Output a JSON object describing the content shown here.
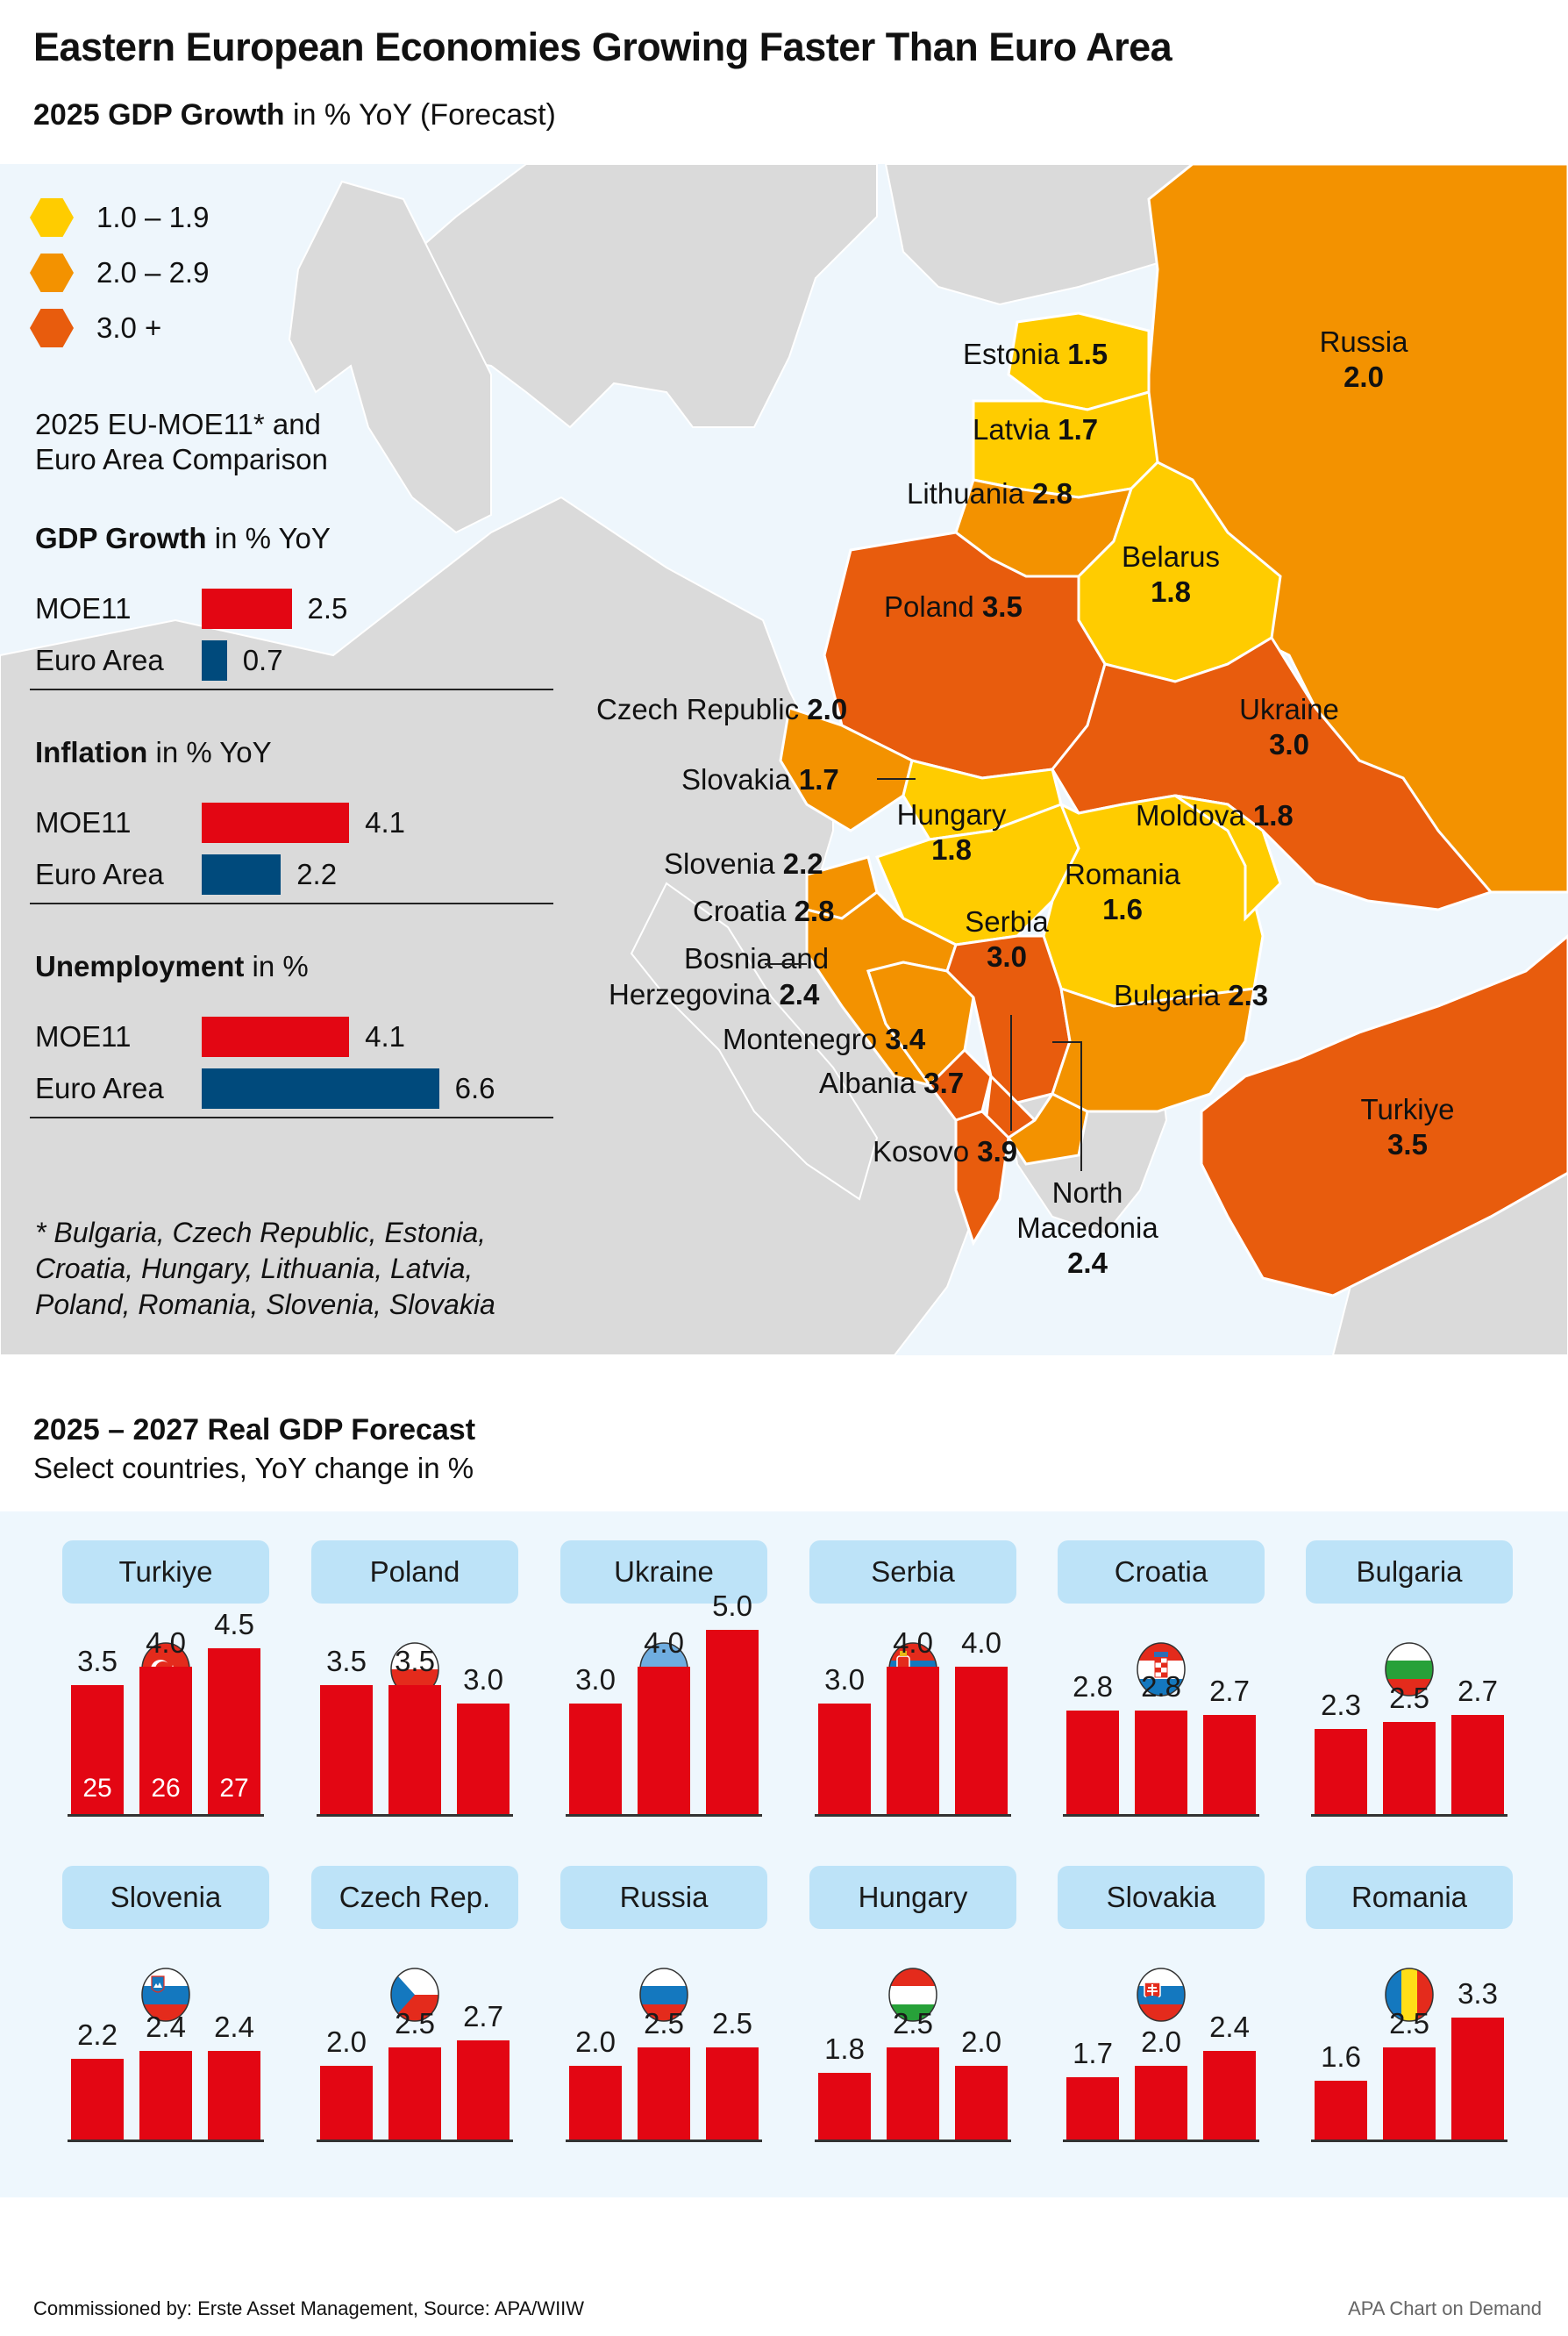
{
  "header": {
    "title": "Eastern European Economies Growing Faster Than Euro Area",
    "subtitle_bold": "2025 GDP Growth",
    "subtitle_rest": " in % YoY (Forecast)"
  },
  "colors": {
    "band_low": "#ffcc00",
    "band_mid": "#f39200",
    "band_high": "#e85c0d",
    "moe11": "#e30613",
    "euro_area": "#004a7c",
    "tab_bg": "#bde3f8",
    "land_other": "#dadada",
    "sea": "#eef6fc"
  },
  "legend": [
    {
      "label": "1.0 – 1.9",
      "band": "low"
    },
    {
      "label": "2.0 – 2.9",
      "band": "mid"
    },
    {
      "label": "3.0 +",
      "band": "high"
    }
  ],
  "comparison": {
    "title_line1": "2025 EU-MOE11* and",
    "title_line2": "Euro Area Comparison",
    "sections": [
      {
        "head_bold": "GDP Growth",
        "head_rest": " in % YoY",
        "rows": [
          {
            "label": "MOE11",
            "value": 2.5,
            "display": "2.5",
            "series": "moe11"
          },
          {
            "label": "Euro Area",
            "value": 0.7,
            "display": "0.7",
            "series": "euro_area"
          }
        ]
      },
      {
        "head_bold": "Inflation",
        "head_rest": " in % YoY",
        "rows": [
          {
            "label": "MOE11",
            "value": 4.1,
            "display": "4.1",
            "series": "moe11"
          },
          {
            "label": "Euro Area",
            "value": 2.2,
            "display": "2.2",
            "series": "euro_area"
          }
        ]
      },
      {
        "head_bold": "Unemployment",
        "head_rest": " in %",
        "rows": [
          {
            "label": "MOE11",
            "value": 4.1,
            "display": "4.1",
            "series": "moe11"
          },
          {
            "label": "Euro Area",
            "value": 6.6,
            "display": "6.6",
            "series": "euro_area"
          }
        ]
      }
    ],
    "footnote_lines": [
      "* Bulgaria, Czech Republic, Estonia,",
      "Croatia, Hungary, Lithuania, Latvia,",
      "Poland, Romania, Slovenia, Slovakia"
    ]
  },
  "map_labels": {
    "estonia": {
      "name": "Estonia",
      "value": "1.5"
    },
    "latvia": {
      "name": "Latvia",
      "value": "1.7"
    },
    "lithuania": {
      "name": "Lithuania",
      "value": "2.8"
    },
    "russia": {
      "name": "Russia",
      "value": "2.0"
    },
    "belarus": {
      "name": "Belarus",
      "value": "1.8"
    },
    "poland": {
      "name": "Poland",
      "value": "3.5"
    },
    "czech": {
      "name": "Czech Republic",
      "value": "2.0"
    },
    "ukraine": {
      "name": "Ukraine",
      "value": "3.0"
    },
    "slovakia": {
      "name": "Slovakia",
      "value": "1.7"
    },
    "hungary": {
      "name": "Hungary",
      "value": "1.8"
    },
    "moldova": {
      "name": "Moldova",
      "value": "1.8"
    },
    "slovenia": {
      "name": "Slovenia",
      "value": "2.2"
    },
    "romania": {
      "name": "Romania",
      "value": "1.6"
    },
    "croatia": {
      "name": "Croatia",
      "value": "2.8"
    },
    "serbia": {
      "name": "Serbia",
      "value": "3.0"
    },
    "bosnia": {
      "name_line1": "Bosnia and",
      "name_line2": "Herzegovina",
      "value": "2.4"
    },
    "bulgaria": {
      "name": "Bulgaria",
      "value": "2.3"
    },
    "montenegro": {
      "name": "Montenegro",
      "value": "3.4"
    },
    "albania": {
      "name": "Albania",
      "value": "3.7"
    },
    "kosovo": {
      "name": "Kosovo",
      "value": "3.9"
    },
    "turkiye": {
      "name": "Turkiye",
      "value": "3.5"
    },
    "north_macedonia": {
      "name_line1": "North",
      "name_line2": "Macedonia",
      "value": "2.4"
    }
  },
  "forecast": {
    "title": "2025 – 2027 Real GDP Forecast",
    "subtitle": "Select countries, YoY change in %"
  },
  "footer": {
    "left": "Commissioned by: Erste Asset Management, Source: APA/WIIW",
    "right": "APA Chart on Demand"
  },
  "chart_data": [
    {
      "type": "choropleth-map",
      "title": "2025 GDP Growth in % YoY (Forecast)",
      "bins": [
        {
          "label": "1.0 – 1.9",
          "min": 1.0,
          "max": 1.9
        },
        {
          "label": "2.0 – 2.9",
          "min": 2.0,
          "max": 2.9
        },
        {
          "label": "3.0 +",
          "min": 3.0
        }
      ],
      "regions": [
        {
          "name": "Estonia",
          "value": 1.5
        },
        {
          "name": "Latvia",
          "value": 1.7
        },
        {
          "name": "Lithuania",
          "value": 2.8
        },
        {
          "name": "Russia",
          "value": 2.0
        },
        {
          "name": "Belarus",
          "value": 1.8
        },
        {
          "name": "Poland",
          "value": 3.5
        },
        {
          "name": "Czech Republic",
          "value": 2.0
        },
        {
          "name": "Ukraine",
          "value": 3.0
        },
        {
          "name": "Slovakia",
          "value": 1.7
        },
        {
          "name": "Hungary",
          "value": 1.8
        },
        {
          "name": "Moldova",
          "value": 1.8
        },
        {
          "name": "Slovenia",
          "value": 2.2
        },
        {
          "name": "Romania",
          "value": 1.6
        },
        {
          "name": "Croatia",
          "value": 2.8
        },
        {
          "name": "Serbia",
          "value": 3.0
        },
        {
          "name": "Bosnia and Herzegovina",
          "value": 2.4
        },
        {
          "name": "Bulgaria",
          "value": 2.3
        },
        {
          "name": "Montenegro",
          "value": 3.4
        },
        {
          "name": "Albania",
          "value": 3.7
        },
        {
          "name": "Kosovo",
          "value": 3.9
        },
        {
          "name": "Turkiye",
          "value": 3.5
        },
        {
          "name": "North Macedonia",
          "value": 2.4
        }
      ]
    },
    {
      "type": "bar",
      "orientation": "horizontal",
      "title": "2025 EU-MOE11* and Euro Area Comparison",
      "categories": [
        "GDP Growth in % YoY",
        "Inflation in % YoY",
        "Unemployment in %"
      ],
      "series": [
        {
          "name": "MOE11",
          "values": [
            2.5,
            4.1,
            4.1
          ]
        },
        {
          "name": "Euro Area",
          "values": [
            0.7,
            2.2,
            6.6
          ]
        }
      ]
    },
    {
      "type": "bar",
      "title": "2025 – 2027 Real GDP Forecast",
      "subtitle": "Select countries, YoY change in %",
      "categories": [
        "2025",
        "2026",
        "2027"
      ],
      "year_labels": [
        "25",
        "26",
        "27"
      ],
      "ylim": [
        0,
        5.0
      ],
      "panels": [
        {
          "country": "Turkiye",
          "flag": "turkey-flag",
          "values": [
            3.5,
            4.0,
            4.5
          ],
          "display": [
            "3.5",
            "4.0",
            "4.5"
          ],
          "show_years": true
        },
        {
          "country": "Poland",
          "flag": "poland-flag",
          "values": [
            3.5,
            3.5,
            3.0
          ],
          "display": [
            "3.5",
            "3.5",
            "3.0"
          ]
        },
        {
          "country": "Ukraine",
          "flag": "ukraine-flag",
          "values": [
            3.0,
            4.0,
            5.0
          ],
          "display": [
            "3.0",
            "4.0",
            "5.0"
          ]
        },
        {
          "country": "Serbia",
          "flag": "serbia-flag",
          "values": [
            3.0,
            4.0,
            4.0
          ],
          "display": [
            "3.0",
            "4.0",
            "4.0"
          ]
        },
        {
          "country": "Croatia",
          "flag": "croatia-flag",
          "values": [
            2.8,
            2.8,
            2.7
          ],
          "display": [
            "2.8",
            "2.8",
            "2.7"
          ]
        },
        {
          "country": "Bulgaria",
          "flag": "bulgaria-flag",
          "values": [
            2.3,
            2.5,
            2.7
          ],
          "display": [
            "2.3",
            "2.5",
            "2.7"
          ]
        },
        {
          "country": "Slovenia",
          "flag": "slovenia-flag",
          "values": [
            2.2,
            2.4,
            2.4
          ],
          "display": [
            "2.2",
            "2.4",
            "2.4"
          ]
        },
        {
          "country": "Czech Rep.",
          "flag": "czech-flag",
          "values": [
            2.0,
            2.5,
            2.7
          ],
          "display": [
            "2.0",
            "2.5",
            "2.7"
          ]
        },
        {
          "country": "Russia",
          "flag": "russia-flag",
          "values": [
            2.0,
            2.5,
            2.5
          ],
          "display": [
            "2.0",
            "2.5",
            "2.5"
          ]
        },
        {
          "country": "Hungary",
          "flag": "hungary-flag",
          "values": [
            1.8,
            2.5,
            2.0
          ],
          "display": [
            "1.8",
            "2.5",
            "2.0"
          ]
        },
        {
          "country": "Slovakia",
          "flag": "slovakia-flag",
          "values": [
            1.7,
            2.0,
            2.4
          ],
          "display": [
            "1.7",
            "2.0",
            "2.4"
          ]
        },
        {
          "country": "Romania",
          "flag": "romania-flag",
          "values": [
            1.6,
            2.5,
            3.3
          ],
          "display": [
            "1.6",
            "2.5",
            "3.3"
          ]
        }
      ]
    }
  ]
}
